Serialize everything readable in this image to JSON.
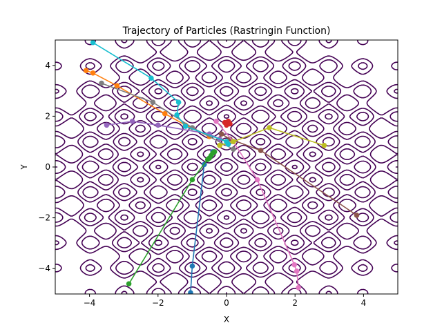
{
  "chart_data": {
    "type": "line",
    "title": "Trajectory of Particles (Rastringin Function)",
    "xlabel": "X",
    "ylabel": "Y",
    "xlim": [
      -5,
      5
    ],
    "ylim": [
      -5,
      5
    ],
    "xticks": [
      -4,
      -2,
      0,
      2,
      4
    ],
    "yticks": [
      -4,
      -2,
      0,
      2,
      4
    ],
    "grid": false,
    "background": {
      "kind": "contour",
      "function": "Rastrigin",
      "levels": [
        5,
        15,
        25,
        35,
        45
      ],
      "color": "#440154"
    },
    "series": [
      {
        "color": "#1f77b4",
        "points": [
          [
            -1.05,
            -4.95
          ],
          [
            -1.0,
            -3.9
          ],
          [
            -0.65,
            0.1
          ],
          [
            -0.4,
            0.6
          ]
        ]
      },
      {
        "color": "#ff7f0e",
        "points": [
          [
            -4.1,
            3.8
          ],
          [
            -3.9,
            3.7
          ],
          [
            -3.2,
            3.2
          ],
          [
            -1.8,
            2.1
          ],
          [
            -1.2,
            1.65
          ],
          [
            -0.5,
            1.2
          ]
        ]
      },
      {
        "color": "#2ca02c",
        "points": [
          [
            -2.85,
            -4.6
          ],
          [
            -1.0,
            -0.5
          ],
          [
            -0.55,
            0.3
          ],
          [
            -0.5,
            0.35
          ],
          [
            -0.45,
            0.45
          ],
          [
            -0.4,
            0.55
          ],
          [
            -0.35,
            0.6
          ]
        ]
      },
      {
        "color": "#d62728",
        "points": [
          [
            0.0,
            1.65
          ],
          [
            0.05,
            1.8
          ],
          [
            -0.05,
            1.75
          ],
          [
            0.1,
            1.7
          ]
        ]
      },
      {
        "color": "#9467bd",
        "points": [
          [
            -3.5,
            1.65
          ],
          [
            -2.75,
            1.8
          ],
          [
            -2.0,
            1.65
          ],
          [
            -0.5,
            1.3
          ],
          [
            -0.2,
            1.1
          ]
        ]
      },
      {
        "color": "#8c564b",
        "points": [
          [
            3.8,
            -1.9
          ],
          [
            1.0,
            0.65
          ],
          [
            0.1,
            1.1
          ],
          [
            -0.15,
            1.3
          ]
        ]
      },
      {
        "color": "#e377c2",
        "points": [
          [
            2.1,
            -4.75
          ],
          [
            2.05,
            -4.1
          ],
          [
            1.98,
            -3.85
          ],
          [
            0.9,
            -0.5
          ],
          [
            0.2,
            1.0
          ],
          [
            -0.3,
            1.8
          ]
        ]
      },
      {
        "color": "#7f7f7f",
        "points": [
          [
            -3.65,
            3.3
          ],
          [
            -2.15,
            2.55
          ],
          [
            -1.0,
            1.55
          ],
          [
            0.2,
            0.7
          ]
        ]
      },
      {
        "color": "#bcbd22",
        "points": [
          [
            2.85,
            0.85
          ],
          [
            1.25,
            1.55
          ],
          [
            0.2,
            1.0
          ],
          [
            -0.2,
            0.85
          ]
        ]
      },
      {
        "color": "#17becf",
        "points": [
          [
            -3.9,
            4.9
          ],
          [
            -2.2,
            3.5
          ],
          [
            -1.4,
            2.55
          ],
          [
            -1.45,
            2.05
          ],
          [
            -1.2,
            1.6
          ],
          [
            0.0,
            1.0
          ],
          [
            0.05,
            0.9
          ]
        ]
      }
    ]
  }
}
